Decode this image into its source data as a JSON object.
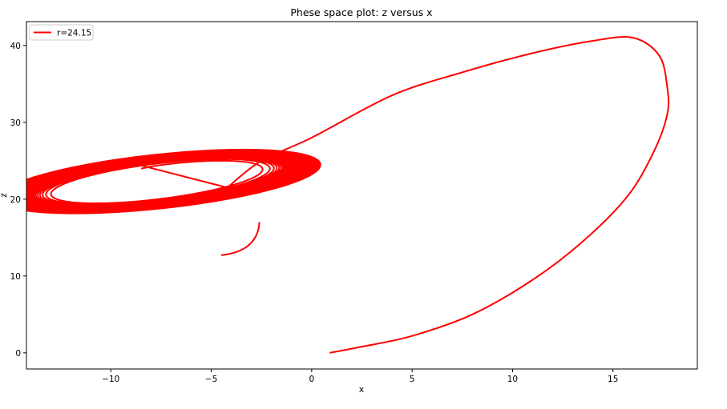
{
  "chart_data": {
    "type": "line",
    "title": "Phese space plot: z versus x",
    "xlabel": "x",
    "ylabel": "z",
    "xlim": [
      -14.2,
      19.2
    ],
    "ylim": [
      -2.1,
      43.1
    ],
    "xticks": [
      -10,
      -5,
      0,
      5,
      10,
      15
    ],
    "xtick_labels": [
      "−10",
      "−5",
      "0",
      "5",
      "10",
      "15"
    ],
    "yticks": [
      0,
      10,
      20,
      30,
      40
    ],
    "ytick_labels": [
      "0",
      "10",
      "20",
      "30",
      "40"
    ],
    "grid": false,
    "legend_position": "upper-left",
    "series": [
      {
        "name": "r=24.15",
        "color": "#ff0000",
        "transient_path": [
          [
            0.9,
            0.0
          ],
          [
            2.5,
            0.8
          ],
          [
            5.0,
            2.2
          ],
          [
            8.0,
            5.0
          ],
          [
            11.0,
            9.5
          ],
          [
            13.5,
            14.5
          ],
          [
            15.7,
            20.3
          ],
          [
            17.0,
            26.0
          ],
          [
            17.7,
            31.0
          ],
          [
            17.7,
            34.6
          ],
          [
            17.3,
            38.7
          ],
          [
            16.0,
            41.0
          ],
          [
            14.0,
            40.6
          ],
          [
            11.0,
            39.0
          ],
          [
            7.5,
            36.5
          ],
          [
            4.0,
            33.5
          ],
          [
            0.0,
            28.0
          ],
          [
            -2.5,
            25.0
          ],
          [
            -4.2,
            21.5
          ]
        ],
        "spiral_center": [
          -7.6,
          22.3
        ],
        "spiral_semi_major": [
          6.2,
          4.6
        ],
        "spiral_semi_minor": [
          3.3,
          2.8
        ],
        "spiral_tilt_deg": -30,
        "spiral_turns": 60,
        "spiral_end": [
          -4.5,
          12.7
        ]
      }
    ]
  }
}
